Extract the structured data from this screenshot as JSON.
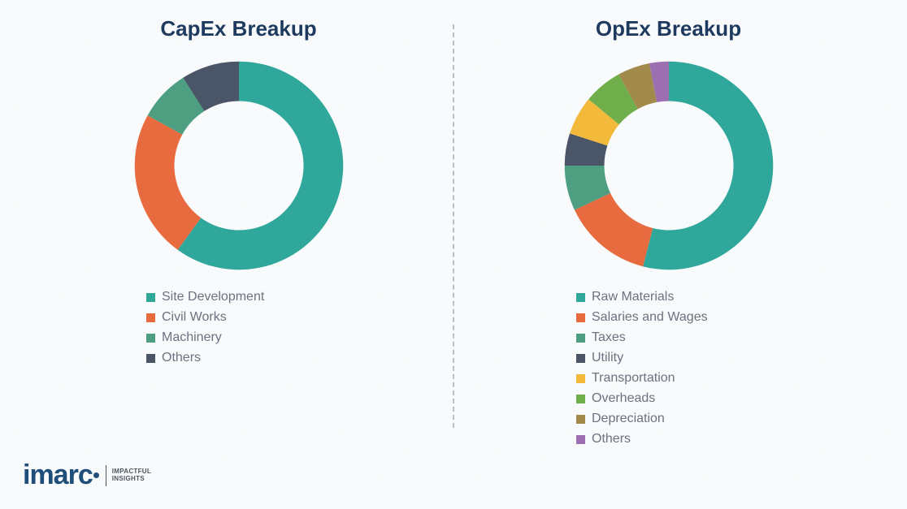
{
  "background_color": "#f8fafb",
  "divider_color": "#b8c0c6",
  "title_color": "#1e3a5f",
  "legend_text_color": "#6b7280",
  "logo": {
    "brand": "imarc",
    "tagline_line1": "IMPACTFUL",
    "tagline_line2": "INSIGHTS",
    "color": "#1e4e79"
  },
  "charts": [
    {
      "id": "capex",
      "title": "CapEx Breakup",
      "type": "donut",
      "inner_radius_ratio": 0.62,
      "title_fontsize": 26,
      "legend_fontsize": 16,
      "start_angle_deg": 0,
      "slices": [
        {
          "label": "Site Development",
          "value": 60,
          "color": "#2fa79a"
        },
        {
          "label": "Civil Works",
          "value": 23,
          "color": "#e86b3f"
        },
        {
          "label": "Machinery",
          "value": 8,
          "color": "#4e9e81"
        },
        {
          "label": "Others",
          "value": 9,
          "color": "#4a5568"
        }
      ]
    },
    {
      "id": "opex",
      "title": "OpEx Breakup",
      "type": "donut",
      "inner_radius_ratio": 0.62,
      "title_fontsize": 26,
      "legend_fontsize": 16,
      "start_angle_deg": 0,
      "slices": [
        {
          "label": "Raw Materials",
          "value": 54,
          "color": "#2fa79a"
        },
        {
          "label": "Salaries and Wages",
          "value": 14,
          "color": "#e86b3f"
        },
        {
          "label": "Taxes",
          "value": 7,
          "color": "#4e9e81"
        },
        {
          "label": "Utility",
          "value": 5,
          "color": "#4a5568"
        },
        {
          "label": "Transportation",
          "value": 6,
          "color": "#f2b93b"
        },
        {
          "label": "Overheads",
          "value": 6,
          "color": "#6fae4a"
        },
        {
          "label": "Depreciation",
          "value": 5,
          "color": "#a18a4a"
        },
        {
          "label": "Others",
          "value": 3,
          "color": "#9b6fb0"
        }
      ]
    }
  ]
}
